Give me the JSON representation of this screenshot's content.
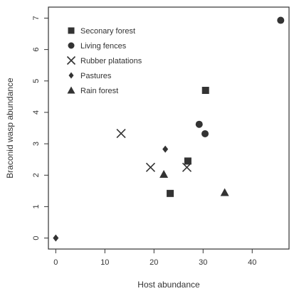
{
  "chart_data": {
    "type": "scatter",
    "title": "",
    "xlabel": "Host abundance",
    "ylabel": "Braconid wasp abundance",
    "xlim": [
      -1.5,
      47.5
    ],
    "ylim": [
      -0.35,
      7.35
    ],
    "xticks": [
      0,
      10,
      20,
      30,
      40
    ],
    "yticks": [
      0,
      1,
      2,
      3,
      4,
      5,
      6,
      7
    ],
    "grid": false,
    "legend_position": "top-left",
    "series": [
      {
        "name": "Seconary forest",
        "marker": "square",
        "x": [
          30.5,
          26.9,
          23.3
        ],
        "y": [
          4.7,
          2.45,
          1.42
        ]
      },
      {
        "name": "Living fences",
        "marker": "circle",
        "x": [
          45.8,
          29.2,
          30.4
        ],
        "y": [
          6.93,
          3.62,
          3.32
        ]
      },
      {
        "name": "Rubber platations",
        "marker": "x",
        "x": [
          13.3,
          19.3,
          26.7
        ],
        "y": [
          3.33,
          2.25,
          2.25
        ]
      },
      {
        "name": "Pastures",
        "marker": "diamond",
        "x": [
          22.3,
          0.0
        ],
        "y": [
          2.83,
          0.0
        ]
      },
      {
        "name": "Rain forest",
        "marker": "triangle",
        "x": [
          22.0,
          34.4
        ],
        "y": [
          2.03,
          1.45
        ]
      }
    ]
  }
}
